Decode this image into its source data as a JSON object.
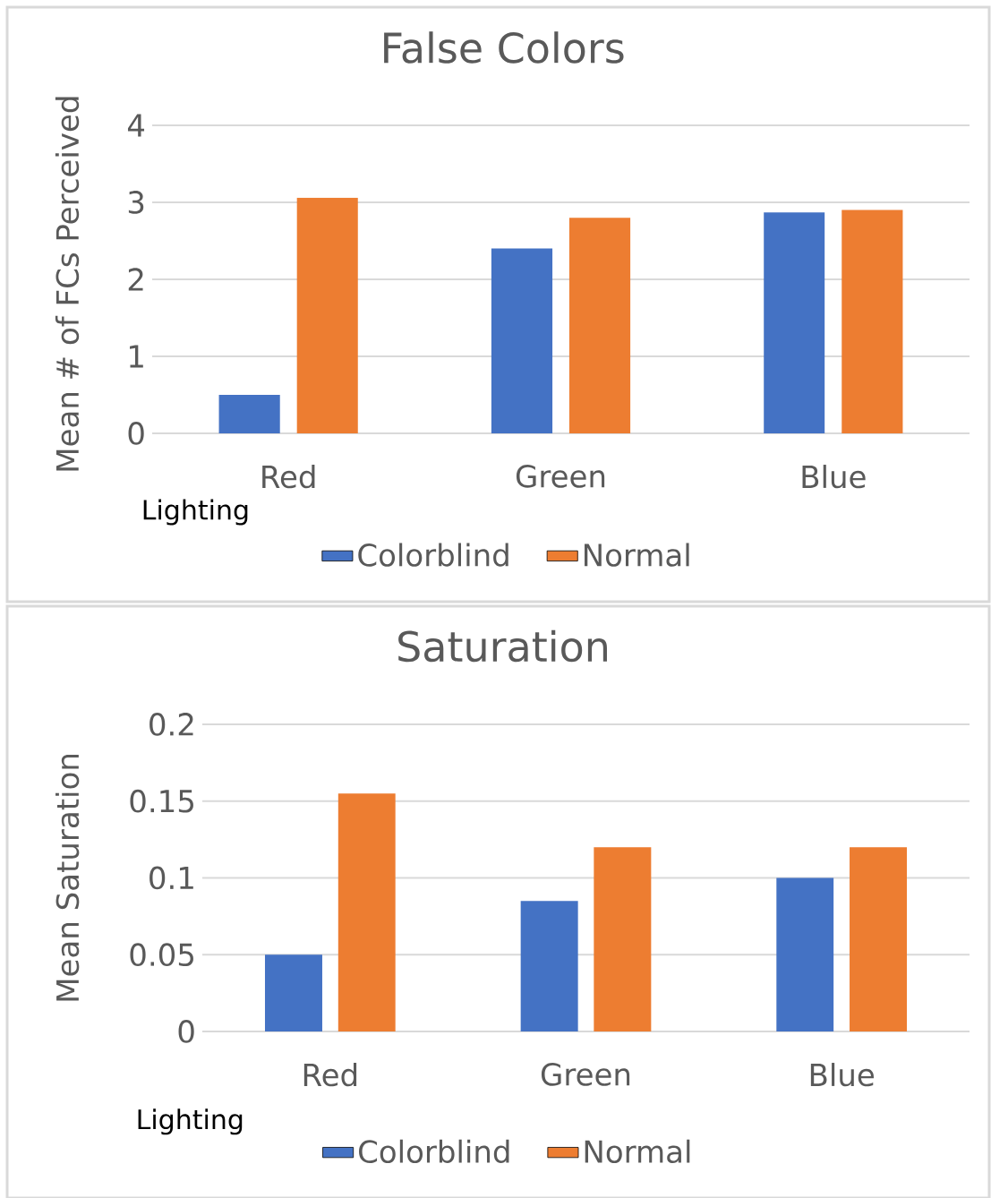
{
  "chart_data": [
    {
      "type": "bar",
      "title": "False Colors",
      "xlabel": "Lighting",
      "ylabel": "Mean # of FCs Perceived",
      "categories": [
        "Red",
        "Green",
        "Blue"
      ],
      "series": [
        {
          "name": "Colorblind",
          "color": "#4472c4",
          "values": [
            0.5,
            2.4,
            2.87
          ]
        },
        {
          "name": "Normal",
          "color": "#ed7d31",
          "values": [
            3.06,
            2.8,
            2.9
          ]
        }
      ],
      "ylim": [
        0,
        4
      ],
      "yticks": [
        0,
        1,
        2,
        3,
        4
      ],
      "grid": "y",
      "legend": "bottom"
    },
    {
      "type": "bar",
      "title": "Saturation",
      "xlabel": "Lighting",
      "ylabel": "Mean Saturation",
      "categories": [
        "Red",
        "Green",
        "Blue"
      ],
      "series": [
        {
          "name": "Colorblind",
          "color": "#4472c4",
          "values": [
            0.05,
            0.085,
            0.1
          ]
        },
        {
          "name": "Normal",
          "color": "#ed7d31",
          "values": [
            0.155,
            0.12,
            0.12
          ]
        }
      ],
      "ylim": [
        0,
        0.2
      ],
      "yticks": [
        0,
        0.05,
        0.1,
        0.15,
        0.2
      ],
      "grid": "y",
      "legend": "bottom"
    }
  ]
}
